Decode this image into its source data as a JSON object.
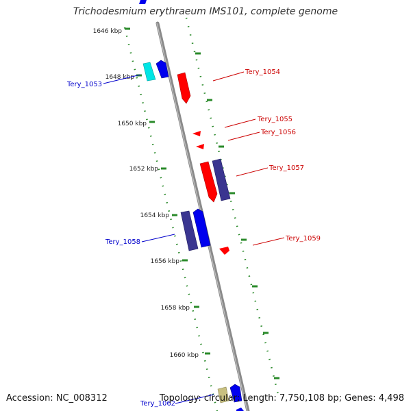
{
  "title": "Trichodesmium erythraeum IMS101, complete genome",
  "accession": "Accession: NC_008312",
  "info": "Topology: circular; Length: 7,750,108 bp; Genes: 4,498",
  "ticks": [
    "1646 kbp",
    "1648 kbp",
    "1650 kbp",
    "1652 kbp",
    "1654 kbp",
    "1656 kbp",
    "1658 kbp",
    "1660 kbp"
  ],
  "genes": [
    {
      "name": "Tery_1053",
      "color": "#0000cc"
    },
    {
      "name": "Tery_1054",
      "color": "#cc0000"
    },
    {
      "name": "Tery_1055",
      "color": "#cc0000"
    },
    {
      "name": "Tery_1056",
      "color": "#cc0000"
    },
    {
      "name": "Tery_1057",
      "color": "#cc0000"
    },
    {
      "name": "Tery_1058",
      "color": "#0000cc"
    },
    {
      "name": "Tery_1059",
      "color": "#cc0000"
    },
    {
      "name": "Tery_1062",
      "color": "#0000cc"
    }
  ],
  "colors": {
    "backbone": "#8a8a8a",
    "tick_green": "#2a8a2a",
    "cds_red": "#ff0000",
    "cds_blue": "#0000ee",
    "cds_navy": "#3a3590",
    "cds_cyan": "#00e5e5",
    "cds_khaki": "#c8c080"
  }
}
